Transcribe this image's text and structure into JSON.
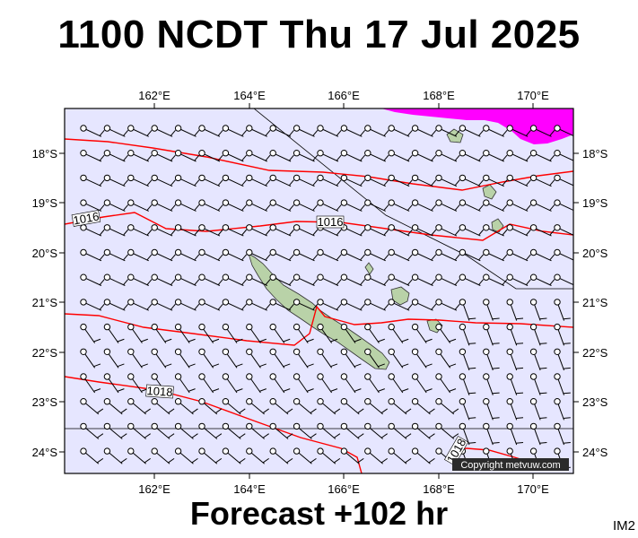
{
  "title": "1100 NCDT Thu 17 Jul 2025",
  "footer": "Forecast +102 hr",
  "corner_tag": "IM2",
  "copyright": "Copyright metvuw.com",
  "map": {
    "lon_range": [
      160.0,
      171.0
    ],
    "lat_range": [
      -24.4,
      -17.0
    ],
    "lon_ticks": [
      "162°E",
      "164°E",
      "166°E",
      "168°E",
      "170°E"
    ],
    "lat_ticks": [
      "18°S",
      "19°S",
      "20°S",
      "21°S",
      "22°S",
      "23°S",
      "24°S"
    ],
    "isobar_labels": [
      "1016",
      "1016",
      "1018",
      "1018"
    ],
    "colors": {
      "ocean": "#e6e6ff",
      "isobar": "#ff0000",
      "rain": "#ff00ff",
      "land": "#b9d2a8",
      "wind": "#000000",
      "label_bg": "#ffffff",
      "copyright_bg": "#2b2b2b",
      "copyright_text": "#ffffff"
    }
  }
}
